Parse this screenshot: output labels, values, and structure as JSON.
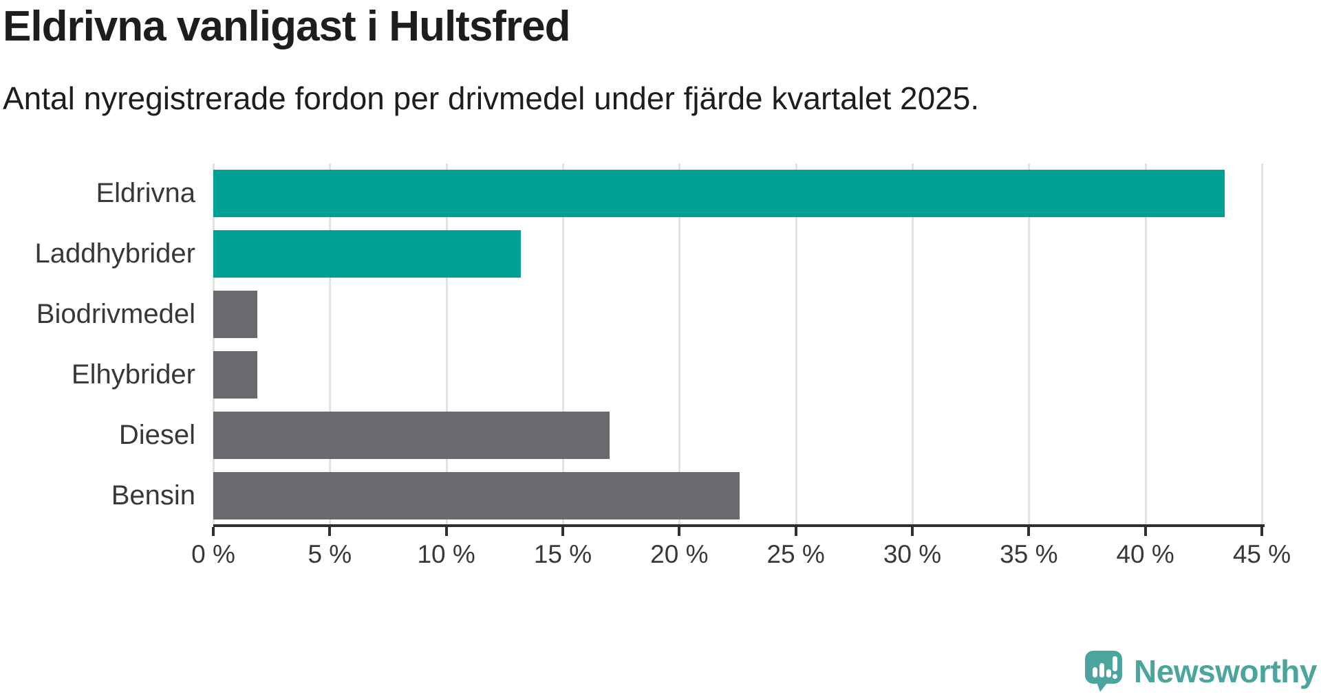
{
  "title": "Eldrivna vanligast i Hultsfred",
  "subtitle": "Antal nyregistrerade fordon per drivmedel under fjärde kvartalet 2025.",
  "chart_data": {
    "type": "bar",
    "orientation": "horizontal",
    "categories": [
      "Eldrivna",
      "Laddhybrider",
      "Biodrivmedel",
      "Elhybrider",
      "Diesel",
      "Bensin"
    ],
    "values": [
      43.4,
      13.2,
      1.9,
      1.9,
      17.0,
      22.6
    ],
    "unit": "%",
    "xlim": [
      0,
      45
    ],
    "x_ticks": [
      0,
      5,
      10,
      15,
      20,
      25,
      30,
      35,
      40,
      45
    ],
    "x_tick_labels": [
      "0 %",
      "5 %",
      "10 %",
      "15 %",
      "20 %",
      "25 %",
      "30 %",
      "35 %",
      "40 %",
      "45 %"
    ],
    "grid": true,
    "legend": "none",
    "bar_colors": [
      "#00a094",
      "#00a094",
      "#6a6970",
      "#6a6970",
      "#6a6970",
      "#6a6970"
    ]
  },
  "colors": {
    "highlight_teal": "#00a094",
    "neutral_gray": "#6a6970",
    "gridline": "#e2e2e2",
    "axis": "#2f2f2f",
    "title_text": "#1d1d1b",
    "label_text": "#383838",
    "logo_teal": "#4ba49d"
  },
  "branding": {
    "name": "Newsworthy"
  }
}
